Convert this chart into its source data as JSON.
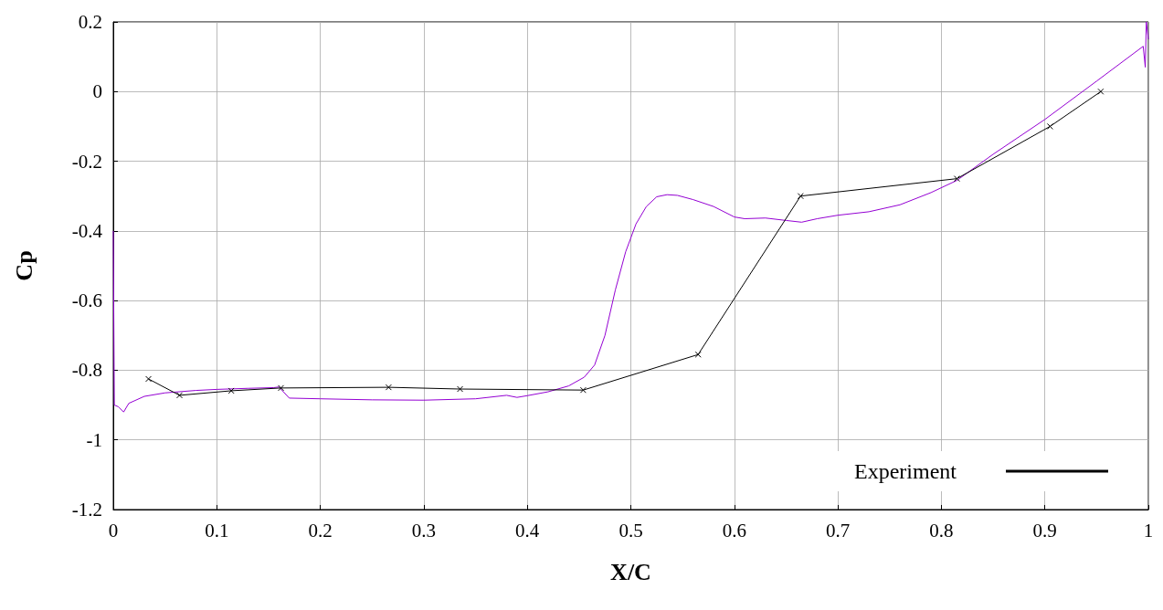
{
  "chart_data": {
    "type": "line",
    "xlabel": "X/C",
    "ylabel": "Cp",
    "xlim": [
      0,
      1
    ],
    "xticks": [
      0,
      0.1,
      0.2,
      0.3,
      0.4,
      0.5,
      0.6,
      0.7,
      0.8,
      0.9,
      1
    ],
    "ylim": [
      -1.2,
      0.2
    ],
    "yticks": [
      -1.2,
      -1,
      -0.8,
      -0.6,
      -0.4,
      -0.2,
      0,
      0.2
    ],
    "grid": true,
    "legend": "bottom right",
    "series": [
      {
        "color": "#9400d3",
        "marker": "none",
        "x": [
          0,
          0.001,
          0.005,
          0.01,
          0.015,
          0.03,
          0.05,
          0.08,
          0.1,
          0.13,
          0.155,
          0.16,
          0.17,
          0.2,
          0.25,
          0.3,
          0.35,
          0.38,
          0.39,
          0.4,
          0.42,
          0.44,
          0.455,
          0.465,
          0.475,
          0.485,
          0.495,
          0.505,
          0.515,
          0.525,
          0.535,
          0.545,
          0.56,
          0.58,
          0.6,
          0.61,
          0.63,
          0.65,
          0.665,
          0.68,
          0.7,
          0.73,
          0.76,
          0.79,
          0.815,
          0.85,
          0.9,
          0.95,
          0.995,
          0.997,
          0.998,
          1
        ],
        "values": [
          -0.4,
          -0.9,
          -0.905,
          -0.92,
          -0.895,
          -0.875,
          -0.865,
          -0.858,
          -0.855,
          -0.852,
          -0.85,
          -0.848,
          -0.88,
          -0.882,
          -0.885,
          -0.886,
          -0.882,
          -0.872,
          -0.878,
          -0.873,
          -0.862,
          -0.845,
          -0.82,
          -0.785,
          -0.7,
          -0.57,
          -0.46,
          -0.38,
          -0.33,
          -0.302,
          -0.296,
          -0.298,
          -0.31,
          -0.33,
          -0.36,
          -0.365,
          -0.363,
          -0.37,
          -0.375,
          -0.365,
          -0.355,
          -0.345,
          -0.325,
          -0.29,
          -0.255,
          -0.18,
          -0.08,
          0.03,
          0.13,
          0.07,
          0.2,
          0.15
        ]
      },
      {
        "name": "Experiment",
        "color": "#000000",
        "marker": "cross",
        "x": [
          0.034,
          0.064,
          0.114,
          0.162,
          0.266,
          0.335,
          0.454,
          0.565,
          0.664,
          0.815,
          0.905,
          0.954
        ],
        "values": [
          -0.825,
          -0.872,
          -0.859,
          -0.851,
          -0.849,
          -0.854,
          -0.857,
          -0.755,
          -0.3,
          -0.25,
          -0.1,
          0
        ]
      }
    ]
  }
}
